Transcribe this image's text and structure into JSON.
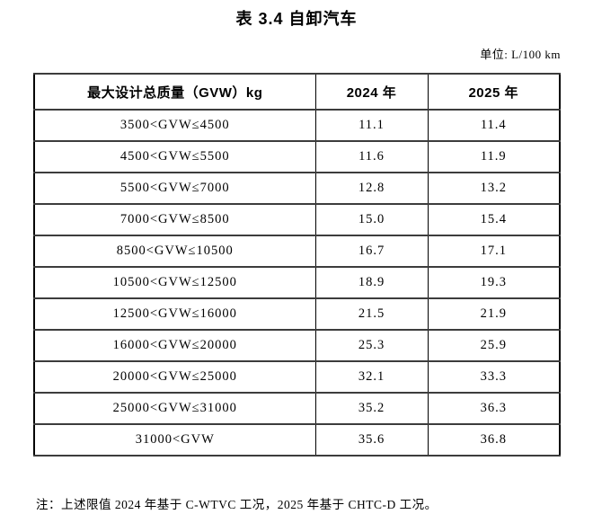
{
  "page": {
    "title": "表 3.4 自卸汽车",
    "unit_label": "单位: L/100 km",
    "note": "注：上述限值 2024 年基于 C-WTVC 工况，2025 年基于 CHTC-D 工况。"
  },
  "table": {
    "headers": [
      "最大设计总质量（GVW）kg",
      "2024 年",
      "2025 年"
    ],
    "rows": [
      {
        "range": "3500<GVW≤4500",
        "y2024": "11.1",
        "y2025": "11.4"
      },
      {
        "range": "4500<GVW≤5500",
        "y2024": "11.6",
        "y2025": "11.9"
      },
      {
        "range": "5500<GVW≤7000",
        "y2024": "12.8",
        "y2025": "13.2"
      },
      {
        "range": "7000<GVW≤8500",
        "y2024": "15.0",
        "y2025": "15.4"
      },
      {
        "range": "8500<GVW≤10500",
        "y2024": "16.7",
        "y2025": "17.1"
      },
      {
        "range": "10500<GVW≤12500",
        "y2024": "18.9",
        "y2025": "19.3"
      },
      {
        "range": "12500<GVW≤16000",
        "y2024": "21.5",
        "y2025": "21.9"
      },
      {
        "range": "16000<GVW≤20000",
        "y2024": "25.3",
        "y2025": "25.9"
      },
      {
        "range": "20000<GVW≤25000",
        "y2024": "32.1",
        "y2025": "33.3"
      },
      {
        "range": "25000<GVW≤31000",
        "y2024": "35.2",
        "y2025": "36.3"
      },
      {
        "range": "31000<GVW",
        "y2024": "35.6",
        "y2025": "36.8"
      }
    ]
  }
}
